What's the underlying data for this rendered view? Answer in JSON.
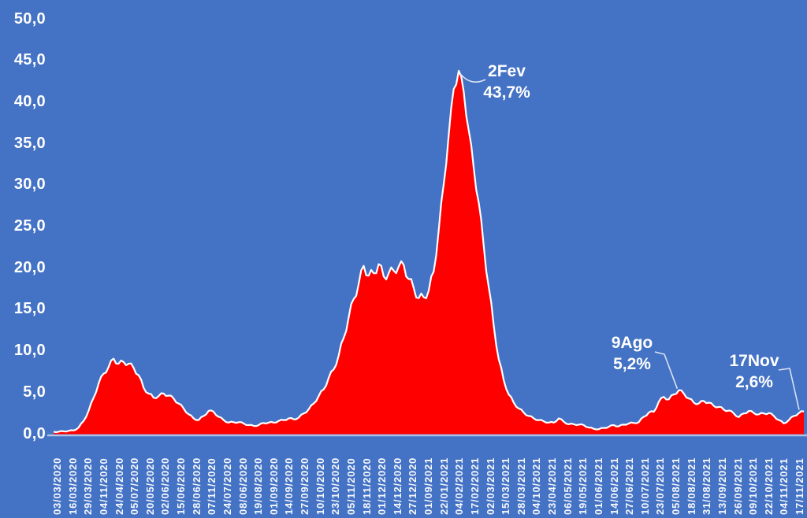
{
  "chart_data": {
    "type": "area",
    "grid": false,
    "legend": "none",
    "ylim": [
      0,
      50
    ],
    "y_ticks": [
      "0,0",
      "5,0",
      "10,0",
      "15,0",
      "20,0",
      "25,0",
      "30,0",
      "35,0",
      "40,0",
      "45,0",
      "50,0"
    ],
    "x_labels": [
      "03/03/2020",
      "16/03/2020",
      "29/03/2020",
      "04/11/2020",
      "24/04/2020",
      "05/07/2020",
      "20/05/2020",
      "02/06/2020",
      "15/06/2020",
      "28/06/2020",
      "07/11/2020",
      "24/07/2020",
      "08/06/2020",
      "19/08/2020",
      "01/09/2020",
      "14/09/2020",
      "27/09/2020",
      "10/10/2020",
      "23/10/2020",
      "05/11/2020",
      "18/11/2020",
      "01/12/2020",
      "14/12/2020",
      "27/12/2020",
      "01/09/2021",
      "22/01/2021",
      "04/02/2021",
      "17/02/2021",
      "02/03/2021",
      "15/03/2021",
      "28/03/2021",
      "04/10/2021",
      "23/04/2021",
      "06/05/2021",
      "19/05/2021",
      "01/06/2021",
      "14/06/2021",
      "27/06/2021",
      "10/07/2021",
      "23/07/2021",
      "05/08/2021",
      "18/08/2021",
      "31/08/2021",
      "13/09/2021",
      "26/09/2021",
      "09/10/2021",
      "22/10/2021",
      "04/11/2021",
      "17/11/2021"
    ],
    "series": [
      {
        "values": [
          0.2,
          0.2,
          0.25,
          0.3,
          0.35,
          0.7,
          1.5,
          2.7,
          4.3,
          6.0,
          7.2,
          8.0,
          9.0,
          8.4,
          8.6,
          8.4,
          7.9,
          7.0,
          5.5,
          4.8,
          4.3,
          4.5,
          4.8,
          4.55,
          4.2,
          3.6,
          3.0,
          2.3,
          1.8,
          1.6,
          2.1,
          2.7,
          2.6,
          2.0,
          1.6,
          1.3,
          1.35,
          1.35,
          1.2,
          1.0,
          0.9,
          1.0,
          1.25,
          1.3,
          1.3,
          1.5,
          1.6,
          1.8,
          1.7,
          1.9,
          2.4,
          2.9,
          3.6,
          4.5,
          5.3,
          6.7,
          7.7,
          9.4,
          11.5,
          14.0,
          16.2,
          18.0,
          20.2,
          19.0,
          19.3,
          20.4,
          18.9,
          19.3,
          19.6,
          20.1,
          20.3,
          18.6,
          17.5,
          16.3,
          16.4,
          17.2,
          19.5,
          24.5,
          30.0,
          36.0,
          41.5,
          43.7,
          41.2,
          36.5,
          32.0,
          27.8,
          22.6,
          17.6,
          13.0,
          8.9,
          6.4,
          4.7,
          3.7,
          3.0,
          2.5,
          2.1,
          1.8,
          1.6,
          1.45,
          1.3,
          1.3,
          1.8,
          1.4,
          1.1,
          1.1,
          1.05,
          1.0,
          0.7,
          0.55,
          0.5,
          0.65,
          0.8,
          1.0,
          0.85,
          1.05,
          1.2,
          1.25,
          1.35,
          2.0,
          2.5,
          2.6,
          3.8,
          4.4,
          4.1,
          4.7,
          5.2,
          4.8,
          4.2,
          3.7,
          3.6,
          3.9,
          3.7,
          3.3,
          3.2,
          2.85,
          2.75,
          2.4,
          1.95,
          2.4,
          2.7,
          2.45,
          2.3,
          2.4,
          2.45,
          2.1,
          1.6,
          1.2,
          1.6,
          2.1,
          2.45,
          2.65
        ]
      }
    ],
    "annotations": [
      {
        "label": "2Fev",
        "value": "43,7%",
        "anchor_index": 81
      },
      {
        "label": "9Ago",
        "value": "5,2%",
        "anchor_index": 125
      },
      {
        "label": "17Nov",
        "value": "2,6%",
        "anchor_index": 150
      }
    ],
    "colors": {
      "background": "#4472C4",
      "area_fill": "#FE0000",
      "area_outline": "#FFFFFF",
      "axis_text": "#FFFFFF",
      "axis_line": "#CDD5EC",
      "leader_line": "#D9E2F4"
    }
  }
}
